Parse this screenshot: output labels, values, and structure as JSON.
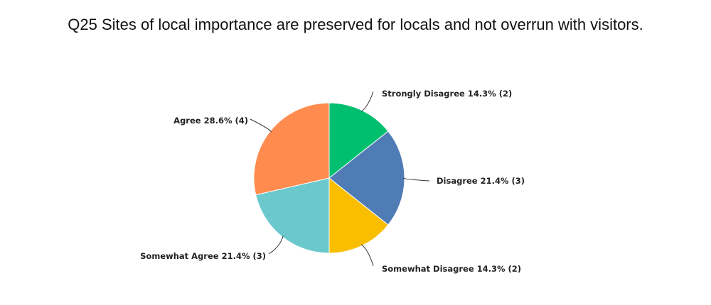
{
  "chart_data": {
    "type": "pie",
    "title": "Q25 Sites of local importance are preserved for locals and not overrun with visitors.",
    "slices": [
      {
        "label": "Strongly Disagree",
        "percent": 14.3,
        "count": 2,
        "color": "#00BF6F",
        "text": "Strongly Disagree 14.3% (2)"
      },
      {
        "label": "Disagree",
        "percent": 21.4,
        "count": 3,
        "color": "#507CB6",
        "text": "Disagree 21.4% (3)"
      },
      {
        "label": "Somewhat Disagree",
        "percent": 14.3,
        "count": 2,
        "color": "#F9BE00",
        "text": "Somewhat Disagree 14.3% (2)"
      },
      {
        "label": "Somewhat Agree",
        "percent": 21.4,
        "count": 3,
        "color": "#6BC8CD",
        "text": "Somewhat Agree 21.4% (3)"
      },
      {
        "label": "Agree",
        "percent": 28.6,
        "count": 4,
        "color": "#FF8B4F",
        "text": "Agree 28.6% (4)"
      }
    ]
  }
}
